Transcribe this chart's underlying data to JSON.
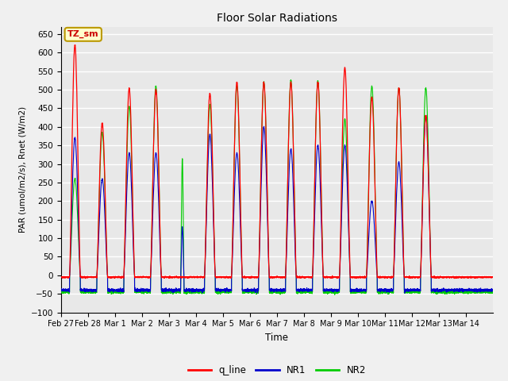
{
  "title": "Floor Solar Radiations",
  "xlabel": "Time",
  "ylabel": "PAR (umol/m2/s), Rnet (W/m2)",
  "ylim": [
    -100,
    670
  ],
  "yticks": [
    -100,
    -50,
    0,
    50,
    100,
    150,
    200,
    250,
    300,
    350,
    400,
    450,
    500,
    550,
    600,
    650
  ],
  "annotation_text": "TZ_sm",
  "annotation_color": "#cc0000",
  "annotation_bg": "#ffffcc",
  "annotation_border": "#bb9900",
  "legend_labels": [
    "q_line",
    "NR1",
    "NR2"
  ],
  "line_colors": {
    "q_line": "#ff0000",
    "NR1": "#0000cc",
    "NR2": "#00cc00"
  },
  "plot_bg": "#e8e8e8",
  "grid_color": "#ffffff",
  "n_days": 16,
  "ppd": 288,
  "xtick_labels": [
    "Feb 27",
    "Feb 28",
    "Mar 1",
    "Mar 2",
    "Mar 3",
    "Mar 4",
    "Mar 5",
    "Mar 6",
    "Mar 7",
    "Mar 8",
    "Mar 9",
    "Mar 10",
    "Mar 11",
    "Mar 12",
    "Mar 13",
    "Mar 14"
  ],
  "day_data": [
    {
      "q": 620,
      "NR1": 370,
      "NR2": 260,
      "rise": 0.32,
      "set": 0.72
    },
    {
      "q": 410,
      "NR1": 260,
      "NR2": 385,
      "rise": 0.33,
      "set": 0.73
    },
    {
      "q": 505,
      "NR1": 330,
      "NR2": 455,
      "rise": 0.33,
      "set": 0.73
    },
    {
      "q": 500,
      "NR1": 330,
      "NR2": 510,
      "rise": 0.32,
      "set": 0.72
    },
    {
      "q": 0,
      "NR1": 130,
      "NR2": 315,
      "rise": 0.44,
      "set": 0.56
    },
    {
      "q": 490,
      "NR1": 380,
      "NR2": 460,
      "rise": 0.32,
      "set": 0.72
    },
    {
      "q": 520,
      "NR1": 330,
      "NR2": 510,
      "rise": 0.32,
      "set": 0.72
    },
    {
      "q": 520,
      "NR1": 400,
      "NR2": 520,
      "rise": 0.32,
      "set": 0.72
    },
    {
      "q": 520,
      "NR1": 340,
      "NR2": 525,
      "rise": 0.32,
      "set": 0.72
    },
    {
      "q": 520,
      "NR1": 350,
      "NR2": 525,
      "rise": 0.32,
      "set": 0.72
    },
    {
      "q": 560,
      "NR1": 350,
      "NR2": 420,
      "rise": 0.32,
      "set": 0.72
    },
    {
      "q": 480,
      "NR1": 200,
      "NR2": 510,
      "rise": 0.32,
      "set": 0.72
    },
    {
      "q": 505,
      "NR1": 305,
      "NR2": 505,
      "rise": 0.32,
      "set": 0.72
    },
    {
      "q": 430,
      "NR1": 430,
      "NR2": 505,
      "rise": 0.32,
      "set": 0.72
    },
    {
      "q": 0,
      "NR1": 0,
      "NR2": 0,
      "rise": 0.33,
      "set": 0.73
    },
    {
      "q": 0,
      "NR1": 0,
      "NR2": 0,
      "rise": 0.33,
      "set": 0.73
    }
  ],
  "night_base_q": -5,
  "night_base_NR1": -40,
  "night_base_NR2": -45
}
